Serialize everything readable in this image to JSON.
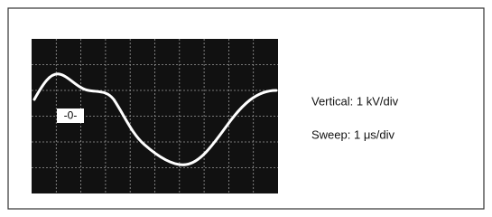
{
  "figure": {
    "marker": "-0-",
    "vertical": "Vertical: 1 kV/div",
    "sweep": "Sweep: 1 μs/div"
  }
}
